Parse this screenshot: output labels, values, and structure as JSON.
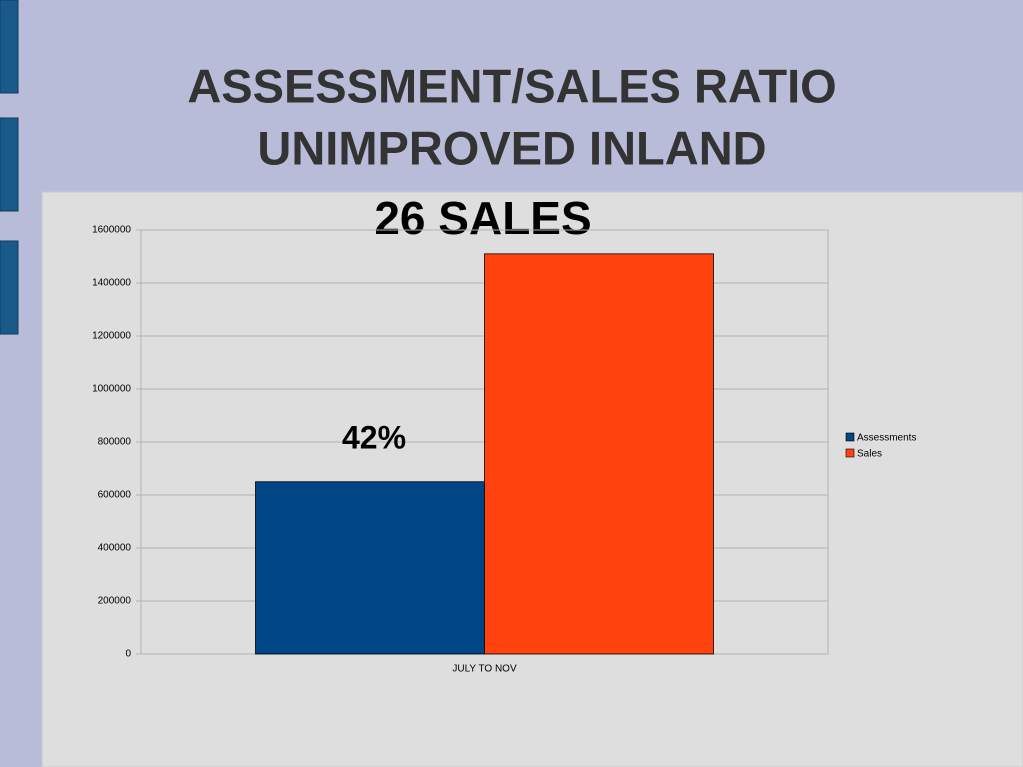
{
  "slide": {
    "title_lines": [
      "ASSESSMENT/SALES RATIO",
      "UNIMPROVED INLAND"
    ]
  },
  "chart_data": {
    "type": "bar",
    "title": "26 SALES",
    "annotation": "42%",
    "categories": [
      "JULY TO NOV"
    ],
    "series": [
      {
        "name": "Assessments",
        "color": "#004586",
        "values": [
          650000
        ]
      },
      {
        "name": "Sales",
        "color": "#ff420e",
        "values": [
          1510000
        ]
      }
    ],
    "ylim": [
      0,
      1600000
    ],
    "yticks": [
      0,
      200000,
      400000,
      600000,
      800000,
      1000000,
      1200000,
      1400000,
      1600000
    ],
    "grid": true,
    "legend": "right"
  }
}
